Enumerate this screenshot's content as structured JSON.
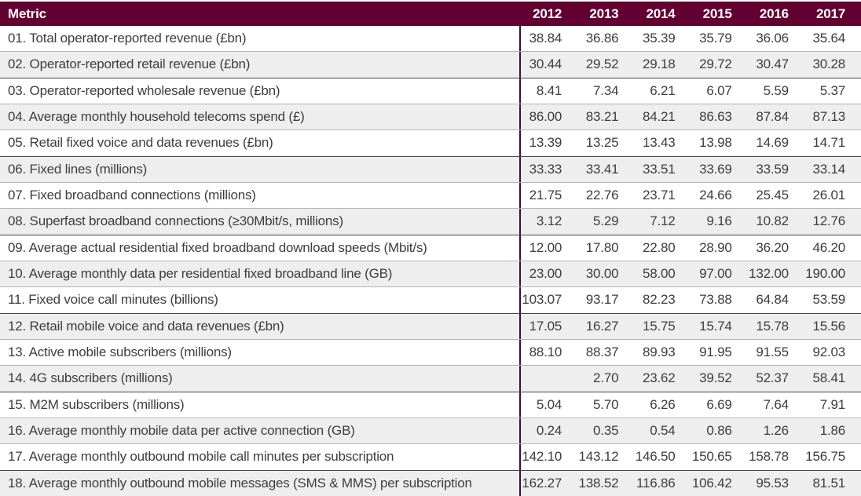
{
  "colors": {
    "header_bg": "#620031",
    "header_text": "#ffffff",
    "body_text": "#3d3d3c",
    "alt_row_bg": "#eeeeee",
    "row_separator": "#b5b5b5",
    "group_separator": "#474747",
    "column_divider": "#420e28"
  },
  "chart_data": {
    "type": "table",
    "columns": [
      "Metric",
      "2012",
      "2013",
      "2014",
      "2015",
      "2016",
      "2017"
    ],
    "rows": [
      {
        "metric": "01. Total operator-reported revenue (£bn)",
        "values": [
          "38.84",
          "36.86",
          "35.39",
          "35.79",
          "36.06",
          "35.64"
        ],
        "section_end": false
      },
      {
        "metric": "02. Operator-reported retail revenue (£bn)",
        "values": [
          "30.44",
          "29.52",
          "29.18",
          "29.72",
          "30.47",
          "30.28"
        ],
        "section_end": true
      },
      {
        "metric": "03. Operator-reported wholesale revenue (£bn)",
        "values": [
          "8.41",
          "7.34",
          "6.21",
          "6.07",
          "5.59",
          "5.37"
        ],
        "section_end": false
      },
      {
        "metric": "04. Average monthly household telecoms spend (£)",
        "values": [
          "86.00",
          "83.21",
          "84.21",
          "86.63",
          "87.84",
          "87.13"
        ],
        "section_end": false
      },
      {
        "metric": "05. Retail fixed voice and data revenues (£bn)",
        "values": [
          "13.39",
          "13.25",
          "13.43",
          "13.98",
          "14.69",
          "14.71"
        ],
        "section_end": true
      },
      {
        "metric": "06. Fixed lines (millions)",
        "values": [
          "33.33",
          "33.41",
          "33.51",
          "33.69",
          "33.59",
          "33.14"
        ],
        "section_end": false
      },
      {
        "metric": "07. Fixed broadband connections (millions)",
        "values": [
          "21.75",
          "22.76",
          "23.71",
          "24.66",
          "25.45",
          "26.01"
        ],
        "section_end": false
      },
      {
        "metric": "08. Superfast broadband connections (≥30Mbit/s, millions)",
        "values": [
          "3.12",
          "5.29",
          "7.12",
          "9.16",
          "10.82",
          "12.76"
        ],
        "section_end": true
      },
      {
        "metric": "09. Average actual residential fixed broadband download speeds (Mbit/s)",
        "values": [
          "12.00",
          "17.80",
          "22.80",
          "28.90",
          "36.20",
          "46.20"
        ],
        "section_end": false
      },
      {
        "metric": "10. Average monthly data per residential fixed broadband line (GB)",
        "values": [
          "23.00",
          "30.00",
          "58.00",
          "97.00",
          "132.00",
          "190.00"
        ],
        "section_end": false
      },
      {
        "metric": "11. Fixed voice call minutes (billions)",
        "values": [
          "103.07",
          "93.17",
          "82.23",
          "73.88",
          "64.84",
          "53.59"
        ],
        "section_end": true
      },
      {
        "metric": "12. Retail mobile voice and data revenues (£bn)",
        "values": [
          "17.05",
          "16.27",
          "15.75",
          "15.74",
          "15.78",
          "15.56"
        ],
        "section_end": false
      },
      {
        "metric": "13. Active mobile subscribers (millions)",
        "values": [
          "88.10",
          "88.37",
          "89.93",
          "91.95",
          "91.55",
          "92.03"
        ],
        "section_end": false
      },
      {
        "metric": "14. 4G subscribers (millions)",
        "values": [
          "",
          "2.70",
          "23.62",
          "39.52",
          "52.37",
          "58.41"
        ],
        "section_end": true
      },
      {
        "metric": "15. M2M subscribers (millions)",
        "values": [
          "5.04",
          "5.70",
          "6.26",
          "6.69",
          "7.64",
          "7.91"
        ],
        "section_end": false
      },
      {
        "metric": "16. Average monthly mobile data per active connection (GB)",
        "values": [
          "0.24",
          "0.35",
          "0.54",
          "0.86",
          "1.26",
          "1.86"
        ],
        "section_end": false
      },
      {
        "metric": "17. Average monthly outbound mobile call minutes per subscription",
        "values": [
          "142.10",
          "143.12",
          "146.50",
          "150.65",
          "158.78",
          "156.75"
        ],
        "section_end": true
      },
      {
        "metric": "18. Average monthly outbound mobile messages (SMS & MMS) per subscription",
        "values": [
          "162.27",
          "138.52",
          "116.86",
          "106.42",
          "95.53",
          "81.51"
        ],
        "section_end": false
      }
    ]
  }
}
